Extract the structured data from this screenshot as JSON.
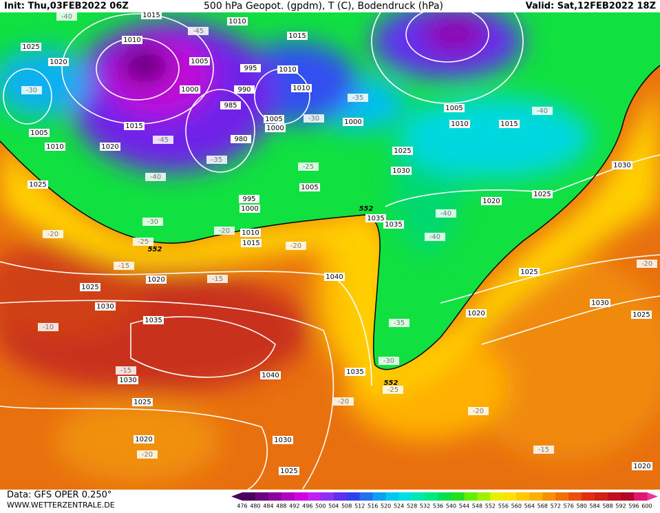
{
  "header": {
    "init": "Init: Thu,03FEB2022 06Z",
    "title": "500 hPa Geopot. (gpdm), T (C), Bodendruck (hPa)",
    "valid": "Valid: Sat,12FEB2022 18Z"
  },
  "footer": {
    "data": "Data: GFS OPER 0.250°",
    "site": "WWW.WETTERZENTRALE.DE"
  },
  "isobar_labels": [
    "1015",
    "1010",
    "1015",
    "1025",
    "1010",
    "1020",
    "1005",
    "995",
    "1010",
    "1010",
    "1000",
    "990",
    "985",
    "1005",
    "1000",
    "1000",
    "1005",
    "1010",
    "1015",
    "1015",
    "1005",
    "1010",
    "1020",
    "980",
    "1025",
    "1030",
    "1005",
    "1025",
    "995",
    "1000",
    "1035",
    "1035",
    "1020",
    "1025",
    "1030",
    "1010",
    "1015",
    "1020",
    "1025",
    "1040",
    "1025",
    "1030",
    "1025",
    "1030",
    "1035",
    "1020",
    "1035",
    "1040",
    "1030",
    "1025",
    "1020",
    "1030",
    "1025",
    "1020"
  ],
  "temperature_labels": [
    "-40",
    "-45",
    "-30",
    "-35",
    "-40",
    "-45",
    "-35",
    "-25",
    "-30",
    "-40",
    "-30",
    "-20",
    "-20",
    "-25",
    "-20",
    "-40",
    "-40",
    "-15",
    "-15",
    "-20",
    "-10",
    "-35",
    "-30",
    "-25",
    "-20",
    "-15",
    "-20",
    "-15",
    "-20"
  ],
  "height_labels": [
    "552",
    "552",
    "552"
  ],
  "legend": {
    "levels": [
      476,
      480,
      484,
      488,
      492,
      496,
      500,
      504,
      508,
      512,
      516,
      520,
      524,
      528,
      532,
      536,
      540,
      544,
      548,
      552,
      556,
      560,
      564,
      568,
      572,
      576,
      580,
      584,
      588,
      592,
      596,
      600
    ],
    "colors": [
      "#4b0060",
      "#6a0080",
      "#8c00a0",
      "#b000c0",
      "#d000e0",
      "#c020f0",
      "#9030f0",
      "#6030f0",
      "#3040f0",
      "#2070f0",
      "#10a0f0",
      "#00c8f0",
      "#00e0e0",
      "#00e8b0",
      "#00e880",
      "#00e050",
      "#20e020",
      "#60f000",
      "#a0f000",
      "#e8f000",
      "#ffe000",
      "#ffc800",
      "#ffb000",
      "#f89000",
      "#f07000",
      "#e85010",
      "#e03010",
      "#d02018",
      "#c01020",
      "#b00828",
      "#e01870"
    ]
  }
}
